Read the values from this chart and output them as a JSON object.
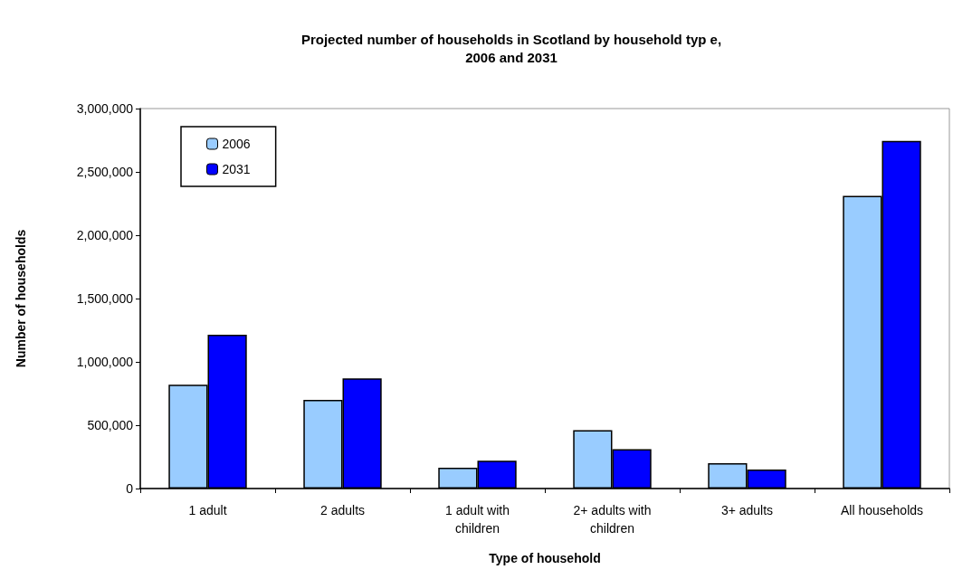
{
  "chart_data": {
    "type": "bar",
    "title": "Projected number of households in Scotland by household typ e,\n2006 and 2031",
    "xlabel": "Type of household",
    "ylabel": "Number of households",
    "categories": [
      "1 adult",
      "2 adults",
      "1 adult with\nchildren",
      "2+ adults with\nchildren",
      "3+ adults",
      "All households"
    ],
    "series": [
      {
        "name": "2006",
        "color": "#99ccff",
        "values": [
          820000,
          700000,
          165000,
          460000,
          200000,
          2310000
        ]
      },
      {
        "name": "2031",
        "color": "#0000ff",
        "values": [
          1215000,
          870000,
          220000,
          310000,
          150000,
          2745000
        ]
      }
    ],
    "ylim": [
      0,
      3000000
    ],
    "yticks": [
      {
        "value": 0,
        "label": "0"
      },
      {
        "value": 500000,
        "label": "500,000"
      },
      {
        "value": 1000000,
        "label": "1,000,000"
      },
      {
        "value": 1500000,
        "label": "1,500,000"
      },
      {
        "value": 2000000,
        "label": "2,000,000"
      },
      {
        "value": 2500000,
        "label": "2,500,000"
      },
      {
        "value": 3000000,
        "label": "3,000,000"
      }
    ],
    "grid": false,
    "legend": "top left"
  }
}
